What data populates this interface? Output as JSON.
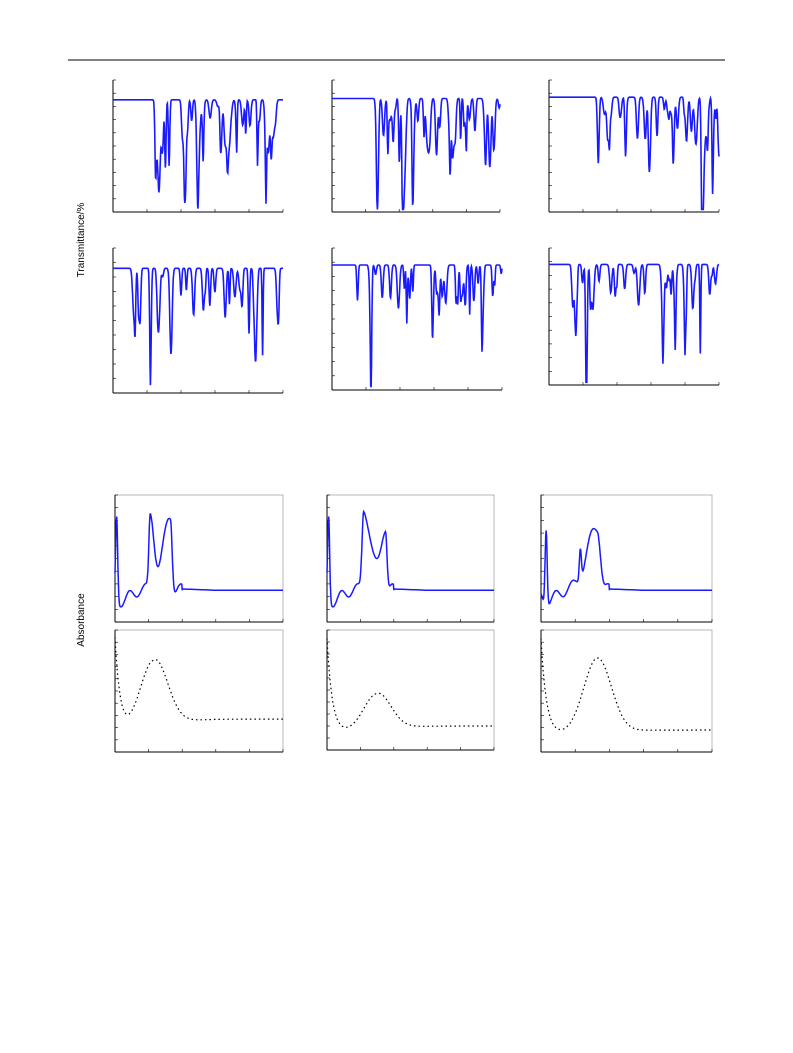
{
  "figure": {
    "ir_axis_label": "Transmittance/%",
    "uv_axis_label": "Absorbance"
  }
}
